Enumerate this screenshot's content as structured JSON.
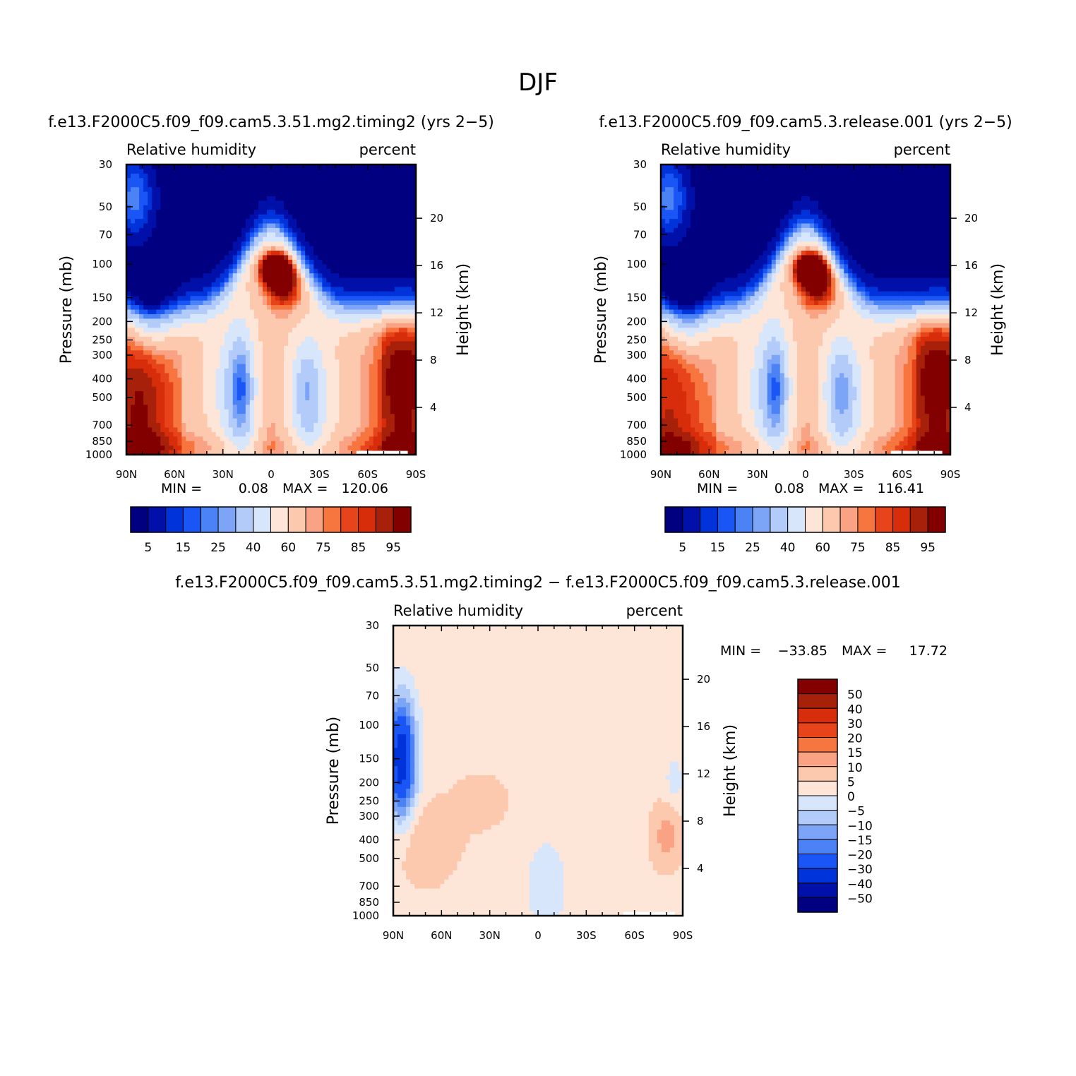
{
  "page_title": "DJF",
  "chart_data": [
    {
      "type": "heatmap",
      "title": "f.e13.F2000C5.f09_f09.cam5.3.51.mg2.timing2 (yrs 2−5)",
      "subtitle_left": "Relative humidity",
      "subtitle_right": "percent",
      "xlabel": "",
      "ylabel": "Pressure (mb)",
      "ylabel_right": "Height (km)",
      "x_ticks": [
        "90N",
        "60N",
        "30N",
        "0",
        "30S",
        "60S",
        "90S"
      ],
      "x_values": [
        90,
        60,
        30,
        0,
        -30,
        -60,
        -90
      ],
      "y_ticks": [
        "30",
        "50",
        "70",
        "100",
        "150",
        "200",
        "250",
        "300",
        "400",
        "500",
        "700",
        "850",
        "1000"
      ],
      "y_values": [
        30,
        50,
        70,
        100,
        150,
        200,
        250,
        300,
        400,
        500,
        700,
        850,
        1000
      ],
      "y_scale": "log",
      "y_right_ticks": [
        "20",
        "16",
        "12",
        "8",
        "4"
      ],
      "y_right_values": [
        20,
        16,
        12,
        8,
        4
      ],
      "min_label": "MIN =",
      "min_value": "0.08",
      "max_label": "MAX =",
      "max_value": "120.06",
      "colorbar_labels": [
        "5",
        "15",
        "25",
        "40",
        "60",
        "75",
        "85",
        "95"
      ],
      "colorbar_orientation": "horizontal",
      "field": "model1"
    },
    {
      "type": "heatmap",
      "title": "f.e13.F2000C5.f09_f09.cam5.3.release.001 (yrs 2−5)",
      "subtitle_left": "Relative humidity",
      "subtitle_right": "percent",
      "xlabel": "",
      "ylabel": "Pressure (mb)",
      "ylabel_right": "Height (km)",
      "x_ticks": [
        "90N",
        "60N",
        "30N",
        "0",
        "30S",
        "60S",
        "90S"
      ],
      "x_values": [
        90,
        60,
        30,
        0,
        -30,
        -60,
        -90
      ],
      "y_ticks": [
        "30",
        "50",
        "70",
        "100",
        "150",
        "200",
        "250",
        "300",
        "400",
        "500",
        "700",
        "850",
        "1000"
      ],
      "y_values": [
        30,
        50,
        70,
        100,
        150,
        200,
        250,
        300,
        400,
        500,
        700,
        850,
        1000
      ],
      "y_scale": "log",
      "y_right_ticks": [
        "20",
        "16",
        "12",
        "8",
        "4"
      ],
      "y_right_values": [
        20,
        16,
        12,
        8,
        4
      ],
      "min_label": "MIN =",
      "min_value": "0.08",
      "max_label": "MAX =",
      "max_value": "116.41",
      "colorbar_labels": [
        "5",
        "15",
        "25",
        "40",
        "60",
        "75",
        "85",
        "95"
      ],
      "colorbar_orientation": "horizontal",
      "field": "model2"
    },
    {
      "type": "heatmap",
      "title": "f.e13.F2000C5.f09_f09.cam5.3.51.mg2.timing2 − f.e13.F2000C5.f09_f09.cam5.3.release.001",
      "subtitle_left": "Relative humidity",
      "subtitle_right": "percent",
      "xlabel": "",
      "ylabel": "Pressure (mb)",
      "ylabel_right": "Height (km)",
      "x_ticks": [
        "90N",
        "60N",
        "30N",
        "0",
        "30S",
        "60S",
        "90S"
      ],
      "x_values": [
        90,
        60,
        30,
        0,
        -30,
        -60,
        -90
      ],
      "y_ticks": [
        "30",
        "50",
        "70",
        "100",
        "150",
        "200",
        "250",
        "300",
        "400",
        "500",
        "700",
        "850",
        "1000"
      ],
      "y_values": [
        30,
        50,
        70,
        100,
        150,
        200,
        250,
        300,
        400,
        500,
        700,
        850,
        1000
      ],
      "y_scale": "log",
      "y_right_ticks": [
        "20",
        "16",
        "12",
        "8",
        "4"
      ],
      "y_right_values": [
        20,
        16,
        12,
        8,
        4
      ],
      "min_label": "MIN =",
      "min_value": "−33.85",
      "max_label": "MAX =",
      "max_value": "17.72",
      "colorbar_labels": [
        "50",
        "40",
        "30",
        "20",
        "15",
        "10",
        "5",
        "0",
        "−5",
        "−10",
        "−15",
        "−20",
        "−30",
        "−40",
        "−50"
      ],
      "colorbar_orientation": "vertical",
      "field": "diff"
    }
  ],
  "colors": {
    "rh_levels": [
      "#000080",
      "#0010a8",
      "#0033d9",
      "#1a55f5",
      "#4b82f5",
      "#7da5f7",
      "#b2cbf9",
      "#d7e6fb",
      "#fde6d8",
      "#fcc9ae",
      "#f9a384",
      "#f7753f",
      "#e8441c",
      "#d72d0b",
      "#a7200a",
      "#830000"
    ],
    "diff_levels": [
      "#830000",
      "#a7200a",
      "#d72d0b",
      "#e8441c",
      "#f7753f",
      "#f9a384",
      "#fcc9ae",
      "#fde6d8",
      "#d7e6fb",
      "#b2cbf9",
      "#7da5f7",
      "#4b82f5",
      "#1a55f5",
      "#0033d9",
      "#0010a8",
      "#000080"
    ]
  }
}
